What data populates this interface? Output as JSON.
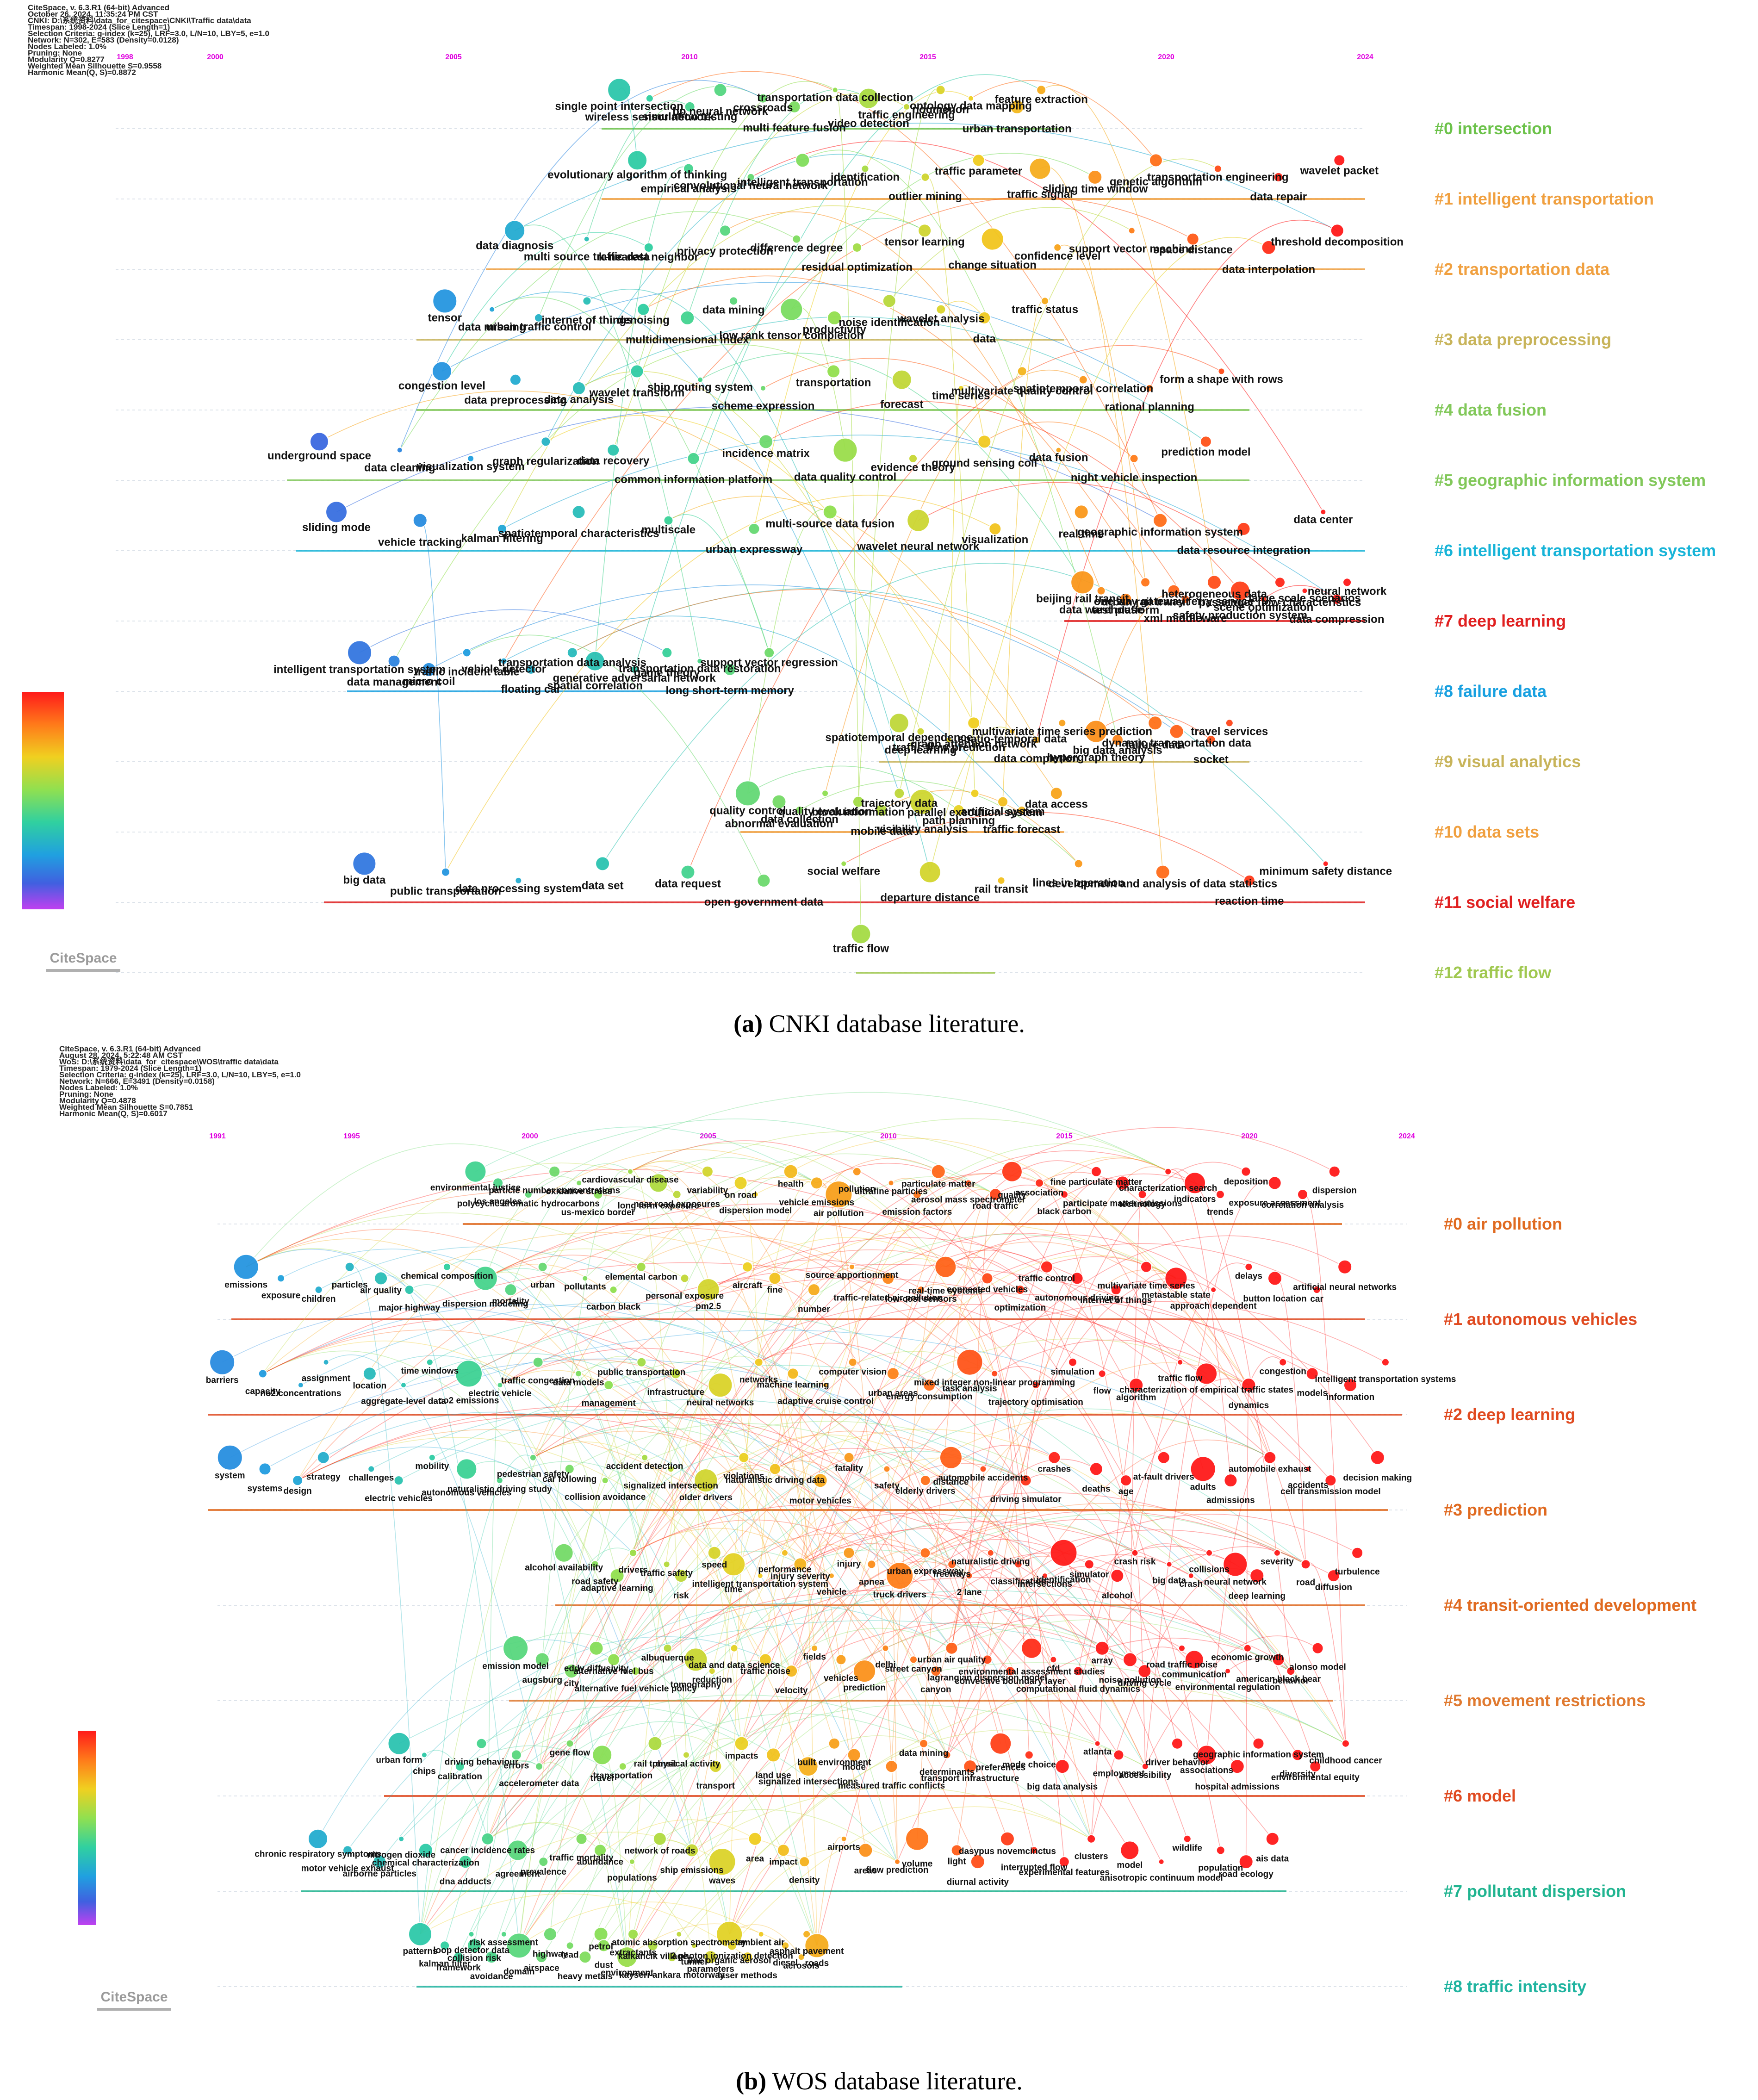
{
  "panel_a": {
    "header": [
      "CiteSpace, v. 6.3.R1 (64-bit) Advanced",
      "October 26, 2024, 11:35:24 PM CST",
      "CNKI: D:\\系统资料\\data_for_citespace\\CNKI\\Traffic data\\data",
      "Timespan: 1998-2024 (Slice Length=1)",
      "Selection Criteria: g-index (k=25), LRF=3.0, L/N=10, LBY=5, e=1.0",
      "Network: N=302, E=583 (Density=0.0128)",
      "Nodes Labeled: 1.0%",
      "Pruning: None",
      "Modularity Q=0.8277",
      "Weighted Mean Silhouette S=0.9558",
      "Harmonic Mean(Q, S)=0.8872"
    ],
    "years": [
      "1998",
      "2000",
      "2005",
      "2010",
      "2015",
      "2020",
      "2024"
    ],
    "clusters": [
      {
        "label": "#0 intersection",
        "color": "#6cc24a"
      },
      {
        "label": "#1 intelligent transportation",
        "color": "#f0a040"
      },
      {
        "label": "#2 transportation data",
        "color": "#f0a040"
      },
      {
        "label": "#3 data preprocessing",
        "color": "#c8b45a"
      },
      {
        "label": "#4 data fusion",
        "color": "#82c85a"
      },
      {
        "label": "#5 geographic information system",
        "color": "#82c85a"
      },
      {
        "label": "#6 intelligent transportation system",
        "color": "#18b4d8"
      },
      {
        "label": "#7 deep learning",
        "color": "#e02020"
      },
      {
        "label": "#8 failure data",
        "color": "#18a0e0"
      },
      {
        "label": "#9 visual analytics",
        "color": "#c8b45a"
      },
      {
        "label": "#10 data sets",
        "color": "#f0a040"
      },
      {
        "label": "#11 social welfare",
        "color": "#e02020"
      },
      {
        "label": "#12 traffic flow",
        "color": "#a0c850"
      }
    ],
    "labels": [
      "single point intersection",
      "wireless sensor network",
      "simulation testing",
      "bp neural network",
      "crossroads",
      "multi feature fusion",
      "transportation data collection",
      "video detection",
      "traffic engineering",
      "noumenon",
      "ontology data mapping",
      "urban transportation",
      "feature extraction",
      "evolutionary algorithm of thinking",
      "empirical analysis",
      "convolutional neural network",
      "intelligent transportation",
      "identification",
      "outlier mining",
      "traffic parameter",
      "traffic signal",
      "sliding time window",
      "genetic algorithm",
      "transportation engineering",
      "data repair",
      "wavelet packet",
      "data diagnosis",
      "multi source traffic data",
      "k-nearest neighbor",
      "privacy protection",
      "difference degree",
      "residual optimization",
      "tensor learning",
      "change situation",
      "confidence level",
      "support vector machine",
      "space distance",
      "data interpolation",
      "threshold decomposition",
      "tensor",
      "data missing",
      "urban traffic control",
      "internet of things",
      "denoising",
      "multidimensional index",
      "data mining",
      "low rank tensor completion",
      "productivity",
      "noise identification",
      "wavelet analysis",
      "data",
      "traffic status",
      "congestion level",
      "data preprocessing",
      "data analysis",
      "wavelet transform",
      "ship routing system",
      "scheme expression",
      "transportation",
      "forecast",
      "time series",
      "multivariate quality control",
      "spatiotemporal correlation",
      "rational planning",
      "form a shape with rows",
      "underground space",
      "data cleaning",
      "visualization system",
      "graph regularization",
      "data recovery",
      "common information platform",
      "incidence matrix",
      "data quality control",
      "evidence theory",
      "ground sensing coil",
      "data fusion",
      "night vehicle inspection",
      "prediction model",
      "sliding mode",
      "vehicle tracking",
      "kalman filtering",
      "spatiotemporal characteristics",
      "multiscale",
      "urban expressway",
      "multi-source data fusion",
      "wavelet neural network",
      "visualization",
      "real time",
      "geographic information system",
      "data resource integration",
      "data center",
      "beijing rail transit",
      "data warehouse",
      "test platform",
      "urban rail transit",
      "one way gateway ferry service",
      "xml middleware",
      "heterogeneous data",
      "safety production system",
      "scene optimization",
      "passenger flow characteristics",
      "large scale scenarios",
      "data compression",
      "neural network",
      "intelligent transportation system",
      "data management",
      "micro coil",
      "traffic incident table",
      "vehicle detector",
      "floating car",
      "transportation data analysis",
      "spatial correlation",
      "generative adversarial network",
      "game theory",
      "transportation data restoration",
      "long short-term memory",
      "support vector regression",
      "spatiotemporal dependence",
      "deep learning",
      "traffic flow prediction",
      "graph attention network",
      "spatio-temporal data",
      "data completion",
      "multivariate time series prediction",
      "hypergraph theory",
      "big data analysis",
      "failure data",
      "dynamic transportation data",
      "socket",
      "travel services",
      "quality control",
      "abnormal evaluation",
      "data collection",
      "quality evaluation",
      "block information",
      "mobile data",
      "trajectory data",
      "visibility analysis",
      "path planning",
      "parallel execution system",
      "artificial system",
      "traffic forecast",
      "data access",
      "big data",
      "public transportation",
      "data processing system",
      "data set",
      "data request",
      "open government data",
      "social welfare",
      "departure distance",
      "rail transit",
      "lines in operation",
      "development and analysis of data statistics",
      "reaction time",
      "minimum safety distance",
      "traffic flow"
    ],
    "caption_letter": "(a)",
    "caption_text": "CNKI database literature."
  },
  "panel_b": {
    "header": [
      "CiteSpace, v. 6.3.R1 (64-bit) Advanced",
      "August 28, 2024, 5:22:48 AM CST",
      "WoS: D:\\系统资料\\data_for_citespace\\WOS\\traffic data\\data",
      "Timespan: 1979-2024 (Slice Length=1)",
      "Selection Criteria: g-index (k=25), LRF=3.0, L/N=10, LBY=5, e=1.0",
      "Network: N=666, E=3491 (Density=0.0158)",
      "Nodes Labeled: 1.0%",
      "Pruning: None",
      "Modularity Q=0.4878",
      "Weighted Mean Silhouette S=0.7851",
      "Harmonic Mean(Q, S)=0.6017"
    ],
    "years": [
      "1991",
      "1995",
      "2000",
      "2005",
      "2010",
      "2015",
      "2020",
      "2024"
    ],
    "clusters": [
      {
        "label": "#0 air pollution",
        "color": "#e06a20"
      },
      {
        "label": "#1 autonomous vehicles",
        "color": "#e04a20"
      },
      {
        "label": "#2 deep learning",
        "color": "#e04a20"
      },
      {
        "label": "#3 prediction",
        "color": "#e06a20"
      },
      {
        "label": "#4 transit-oriented development",
        "color": "#e06a20"
      },
      {
        "label": "#5 movement restrictions",
        "color": "#e07a30"
      },
      {
        "label": "#6 model",
        "color": "#e04a20"
      },
      {
        "label": "#7 pollutant dispersion",
        "color": "#20b490"
      },
      {
        "label": "#8 traffic intensity",
        "color": "#20b4a0"
      }
    ],
    "labels": [
      "environmental justice",
      "los angeles",
      "polycyclic aromatic hydrocarbons",
      "particle number concentrations",
      "oxidative stress",
      "us-mexico border",
      "cardiovascular disease",
      "long term exposure",
      "near road exposures",
      "variability",
      "on road",
      "dispersion model",
      "health",
      "vehicle emissions",
      "air pollution",
      "pollution",
      "ultrafine particles",
      "emission factors",
      "particulate matter",
      "aerosol mass spectrometer",
      "road traffic",
      "quality",
      "association",
      "black carbon",
      "fine particulate matter",
      "participate matter emissions",
      "technology",
      "characterization search",
      "indicators",
      "trends",
      "deposition",
      "exposure assessment",
      "correlation analysis",
      "dispersion",
      "emissions",
      "exposure",
      "children",
      "particles",
      "air quality",
      "major highway",
      "chemical composition",
      "dispersion modeling",
      "mortality",
      "urban",
      "pollutants",
      "carbon black",
      "elemental carbon",
      "personal exposure",
      "pm2.5",
      "aircraft",
      "fine",
      "number",
      "source apportionment",
      "traffic-related air pollution",
      "low-cost sensors",
      "real-time systems",
      "connected vehicles",
      "optimization",
      "traffic control",
      "autonomous driving",
      "internet of things",
      "multivariate time series",
      "metastable state",
      "approach dependent",
      "delays",
      "button location",
      "car",
      "artificial neural networks",
      "barriers",
      "capacity",
      "no2 concentrations",
      "assignment",
      "location",
      "aggregate-level data",
      "time windows",
      "co2 emissions",
      "electric vehicle",
      "traffic congestion",
      "data models",
      "management",
      "public transportation",
      "infrastructure",
      "neural networks",
      "networks",
      "machine learning",
      "adaptive cruise control",
      "computer vision",
      "urban areas",
      "energy consumption",
      "task analysis",
      "mixed integer non-linear programming",
      "trajectory optimisation",
      "simulation",
      "flow",
      "algorithm",
      "traffic flow",
      "characterization of empirical traffic states",
      "dynamics",
      "congestion",
      "models",
      "information",
      "intelligent transportation systems",
      "system",
      "systems",
      "design",
      "strategy",
      "challenges",
      "electric vehicles",
      "mobility",
      "autonomous vehicles",
      "naturalistic driving study",
      "pedestrian safety",
      "car following",
      "collision avoidance",
      "accident detection",
      "signalized intersection",
      "older drivers",
      "violations",
      "naturalistic driving data",
      "motor vehicles",
      "fatality",
      "safety",
      "elderly drivers",
      "distance",
      "automobile accidents",
      "driving simulator",
      "crashes",
      "deaths",
      "age",
      "at-fault drivers",
      "adults",
      "admissions",
      "automobile exhaust",
      "accidents",
      "cell transmission model",
      "decision making",
      "alcohol availability",
      "road safety",
      "adaptive learning",
      "drivers",
      "traffic safety",
      "risk",
      "speed",
      "time",
      "intelligent transportation system",
      "performance",
      "injury severity",
      "vehicle",
      "injury",
      "apnea",
      "truck drivers",
      "urban expressway",
      "freeways",
      "2 lane",
      "naturalistic driving",
      "classification",
      "intersections",
      "identification",
      "simulator",
      "alcohol",
      "crash risk",
      "big data",
      "crash",
      "collisions",
      "neural network",
      "deep learning",
      "severity",
      "road",
      "diffusion",
      "turbulence",
      "emission model",
      "augsburg",
      "city",
      "eddy diffusivity",
      "alternative fuel bus",
      "alternative fuel vehicle policy",
      "albuquerque",
      "tomography",
      "reduction",
      "data and data science",
      "traffic noise",
      "velocity",
      "fields",
      "vehicles",
      "prediction",
      "delhi",
      "street canyon",
      "canyon",
      "urban air quality",
      "lagrangian dispersion model",
      "convective boundary layer",
      "environmental assessment studies",
      "cfd",
      "computational fluid dynamics",
      "array",
      "noise pollution",
      "driving cycle",
      "road traffic noise",
      "communication",
      "environmental regulation",
      "economic growth",
      "american black bear",
      "behavior",
      "alonso model",
      "urban form",
      "chips",
      "calibration",
      "driving behaviour",
      "errors",
      "accelerometer data",
      "gene flow",
      "travel",
      "transportation",
      "rail transit",
      "physical activity",
      "transport",
      "impacts",
      "land use",
      "signalized intersections",
      "built environment",
      "mode",
      "measured traffic conflicts",
      "data mining",
      "determinants",
      "transport infrastructure",
      "preferences",
      "mode choice",
      "big data analysis",
      "atlanta",
      "employment",
      "accessibility",
      "driver behavior",
      "associations",
      "hospital admissions",
      "geographic information system",
      "diversity",
      "environmental equity",
      "childhood cancer",
      "chronic respiratory symptoms",
      "motor vehicle exhaust",
      "airborne particles",
      "nitrogen dioxide",
      "chemical characterization",
      "dna adducts",
      "cancer incidence rates",
      "agreement",
      "prevalence",
      "traffic mortality",
      "abundance",
      "populations",
      "network of roads",
      "ship emissions",
      "waves",
      "area",
      "impact",
      "density",
      "airports",
      "areas",
      "flow prediction",
      "volume",
      "light",
      "diurnal activity",
      "dasypus novemcinctus",
      "interrupted flow",
      "experimental features",
      "clusters",
      "model",
      "anisotropic continuum model",
      "wildlife",
      "population",
      "road ecology",
      "ais data",
      "patterns",
      "kalman filter",
      "framework",
      "loop detector data",
      "collision risk",
      "avoidance",
      "risk assessment",
      "domain",
      "airspace",
      "highway",
      "lead",
      "heavy metals",
      "petrol",
      "dust",
      "environment",
      "extractants",
      "kalkancik village",
      "kayseri-ankara motorway",
      "atomic absorption spectrometry",
      "tunnel",
      "parameters",
      "fine organic aerosol",
      "2 photon ionization detection",
      "laser methods",
      "ambient air",
      "diesel",
      "aerosols",
      "asphalt pavement",
      "roads"
    ],
    "caption_letter": "(b)",
    "caption_text": "WOS database literature."
  },
  "logo_text": "CiteSpace"
}
